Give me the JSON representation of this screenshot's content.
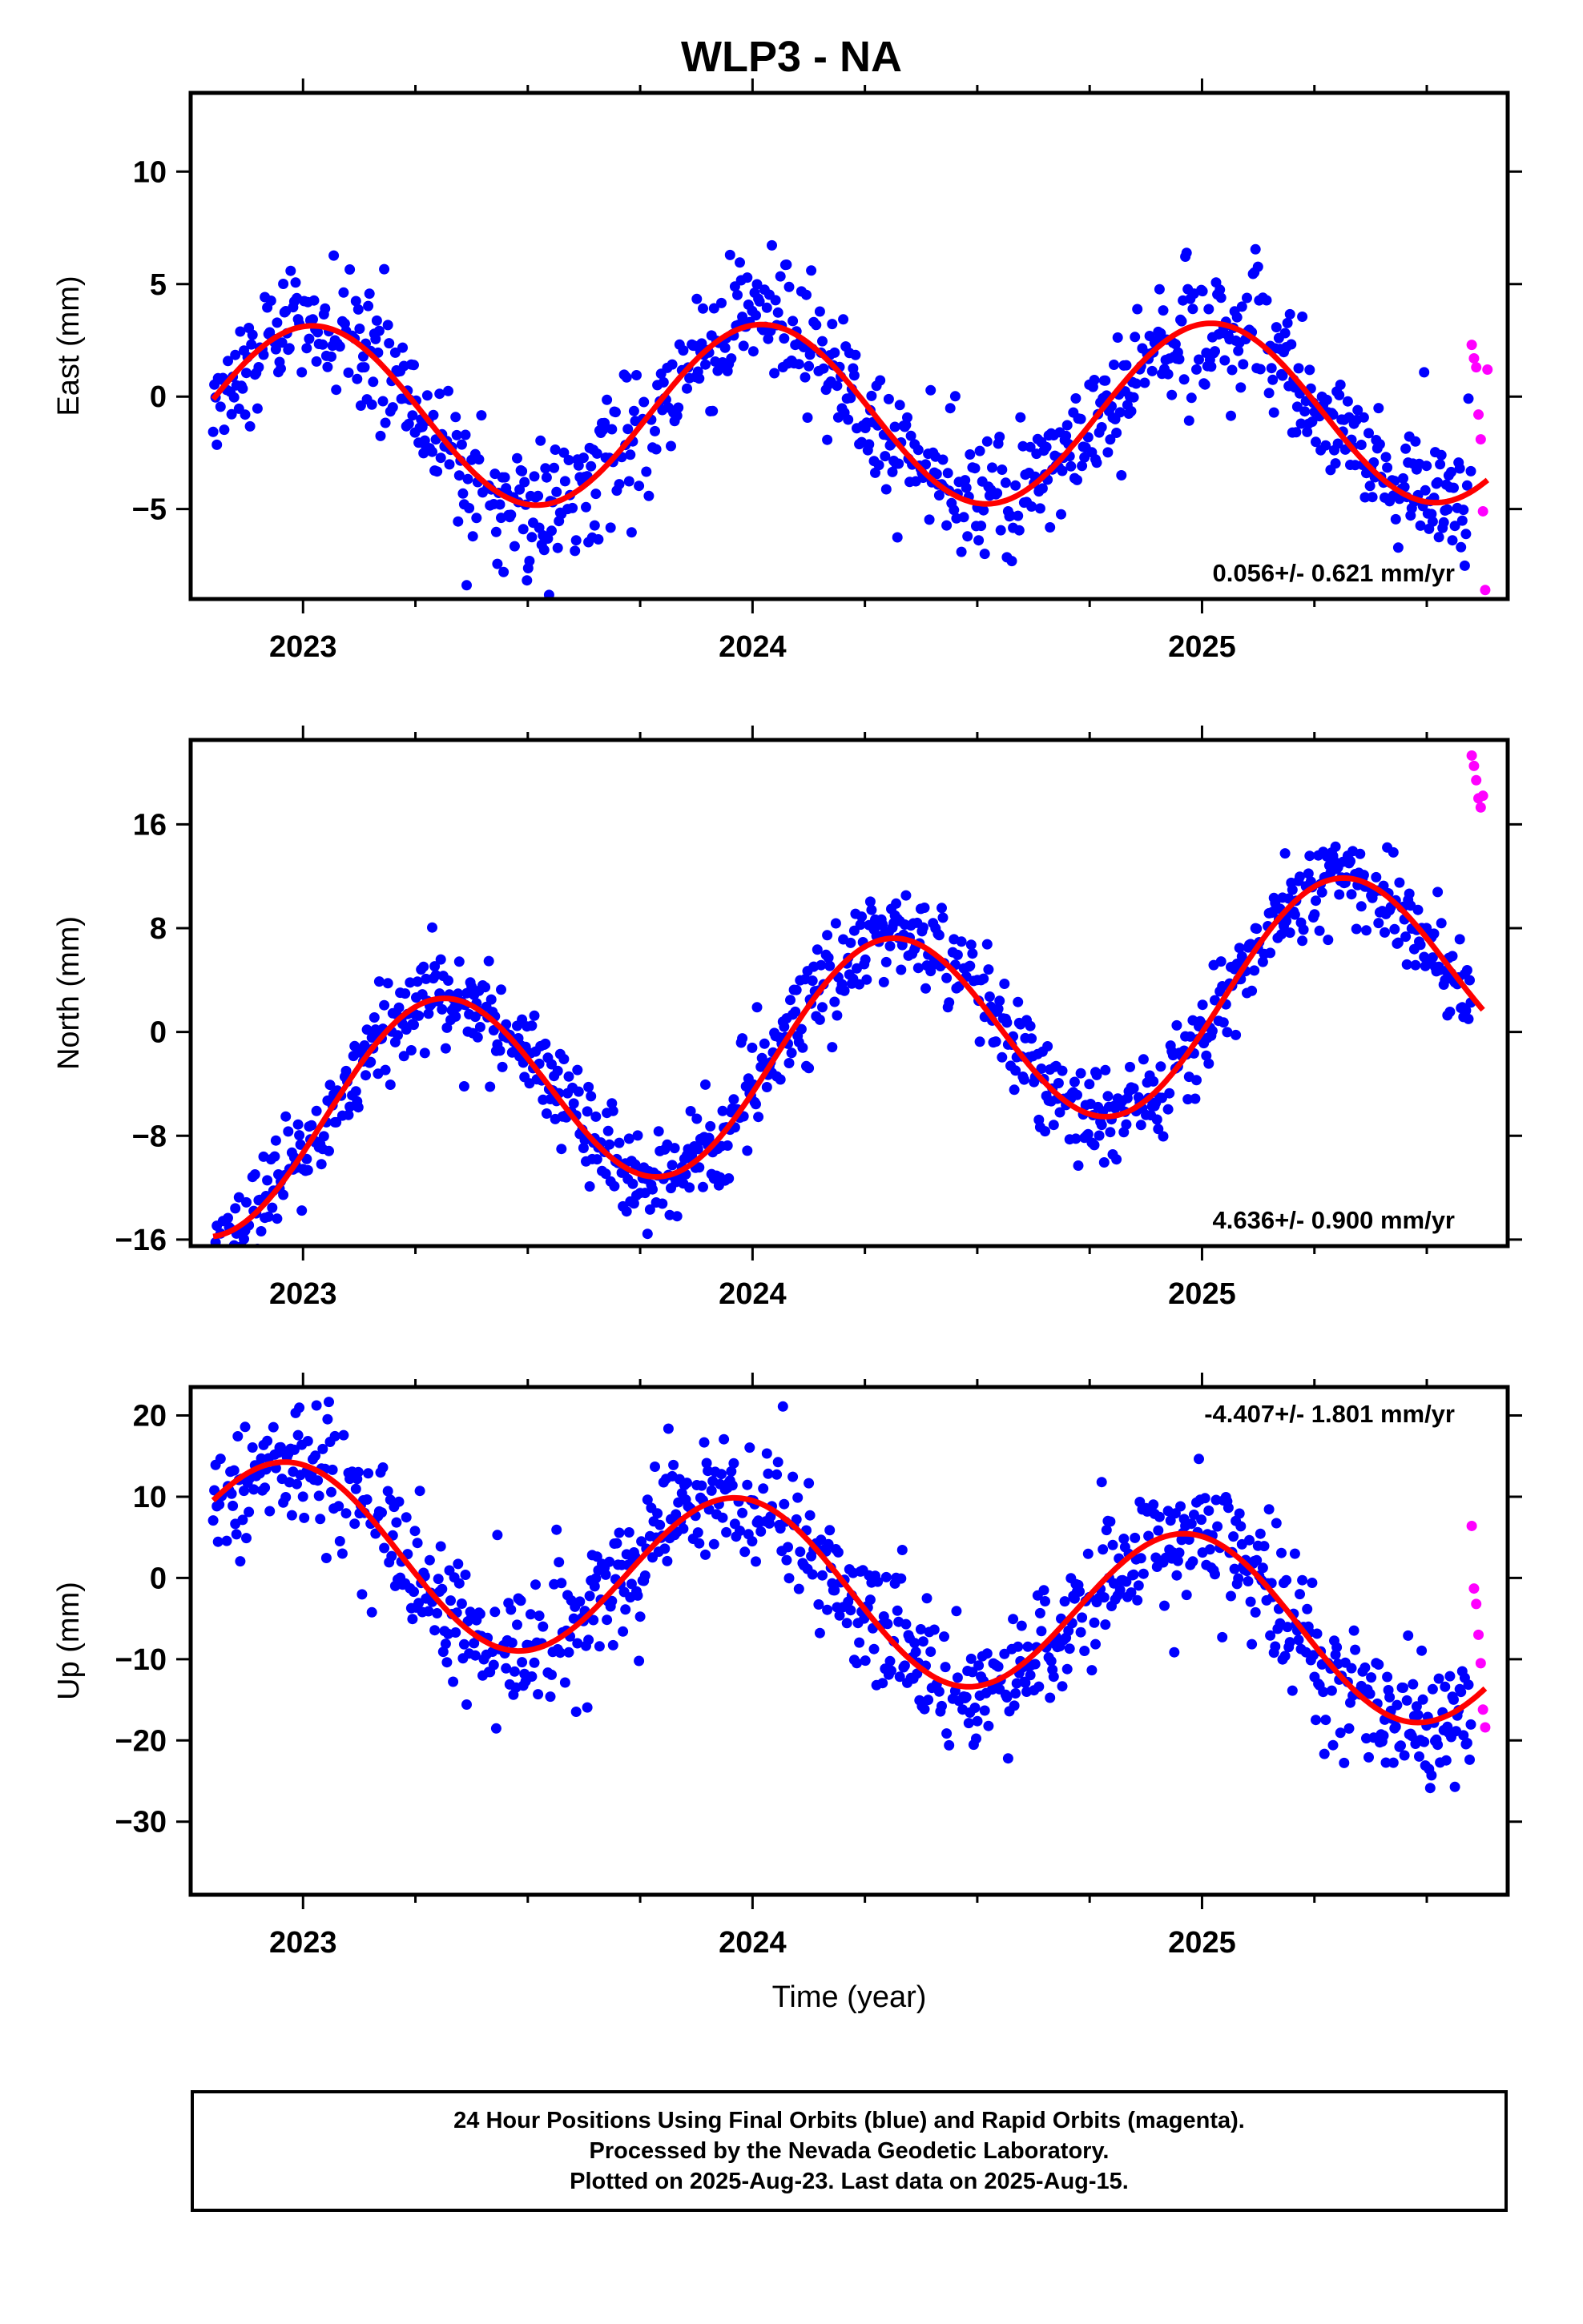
{
  "title": "WLP3 - NA",
  "colors": {
    "final_orbits": "#0000ff",
    "rapid_orbits": "#ff00ff",
    "model_fit": "#ff0000",
    "frame": "#000000"
  },
  "chart_data": [
    {
      "type": "scatter",
      "ylabel": "East (mm)",
      "xlabel": "",
      "xlim": [
        2022.75,
        2025.68
      ],
      "ylim": [
        -9,
        13.5
      ],
      "yticks": [
        10,
        5,
        0,
        -5
      ],
      "ytick_labels": [
        "10",
        "5",
        "0",
        "−5"
      ],
      "xticks": [
        2023,
        2024,
        2025
      ],
      "xtick_labels": [
        "2023",
        "2024",
        "2025"
      ],
      "rate_label": "0.056+/- 0.621 mm/yr",
      "rate_position": "bottom-right",
      "grid": false,
      "model": {
        "offset": -0.8,
        "rate": 0.056,
        "amp1": 4.0,
        "phase1": 0.02,
        "amp2": 0.0,
        "phase2": 0.0
      },
      "noise": 1.4,
      "final_range": [
        2022.8,
        2025.6
      ],
      "rapid": {
        "x": [
          2025.6,
          2025.605,
          2025.61,
          2025.615,
          2025.62,
          2025.625,
          2025.63,
          2025.635
        ],
        "y": [
          2.3,
          1.7,
          1.3,
          -0.8,
          -1.9,
          -5.1,
          -8.6,
          1.2
        ]
      }
    },
    {
      "type": "scatter",
      "ylabel": "North (mm)",
      "xlabel": "",
      "xlim": [
        2022.75,
        2025.68
      ],
      "ylim": [
        -16.5,
        22.5
      ],
      "yticks": [
        16,
        8,
        0,
        -8,
        -16
      ],
      "ytick_labels": [
        "16",
        "8",
        "0",
        "−8",
        "−16"
      ],
      "xticks": [
        2023,
        2024,
        2025
      ],
      "xtick_labels": [
        "2023",
        "2024",
        "2025"
      ],
      "rate_label": "4.636+/- 0.900 mm/yr",
      "rate_position": "bottom-right",
      "grid": false,
      "model": {
        "offset": -2.2,
        "rate": 4.636,
        "amp1": 0.0,
        "phase1": 0.0,
        "amp2": 8.0,
        "phase2": 0.3
      },
      "noise": 1.8,
      "final_range": [
        2022.8,
        2025.6
      ],
      "rapid": {
        "x": [
          2025.6,
          2025.605,
          2025.61,
          2025.615,
          2025.62,
          2025.625
        ],
        "y": [
          21.3,
          20.5,
          19.4,
          18.0,
          17.3,
          18.2
        ]
      }
    },
    {
      "type": "scatter",
      "ylabel": "Up (mm)",
      "xlabel": "Time (year)",
      "xlim": [
        2022.75,
        2025.68
      ],
      "ylim": [
        -39,
        23.5
      ],
      "yticks": [
        20,
        10,
        0,
        -10,
        -20,
        -30
      ],
      "ytick_labels": [
        "20",
        "10",
        "0",
        "−10",
        "−20",
        "−30"
      ],
      "xticks": [
        2023,
        2024,
        2025
      ],
      "xtick_labels": [
        "2023",
        "2024",
        "2025"
      ],
      "rate_label": "-4.407+/- 1.801 mm/yr",
      "rate_position": "top-right",
      "grid": false,
      "model": {
        "offset": -0.8,
        "rate": -4.407,
        "amp1": 10.5,
        "phase1": 0.97,
        "amp2": 0.0,
        "phase2": 0.0
      },
      "noise": 3.8,
      "final_range": [
        2022.8,
        2025.6
      ],
      "rapid": {
        "x": [
          2025.6,
          2025.605,
          2025.61,
          2025.615,
          2025.62,
          2025.625,
          2025.63
        ],
        "y": [
          6.4,
          -1.3,
          -3.2,
          -7.0,
          -10.5,
          -16.2,
          -18.4
        ]
      }
    }
  ],
  "footer": {
    "line1": "24 Hour Positions Using Final Orbits (blue) and Rapid Orbits (magenta).",
    "line2": "Processed by the Nevada Geodetic Laboratory.",
    "line3": "Plotted on 2025-Aug-23. Last data on 2025-Aug-15."
  }
}
